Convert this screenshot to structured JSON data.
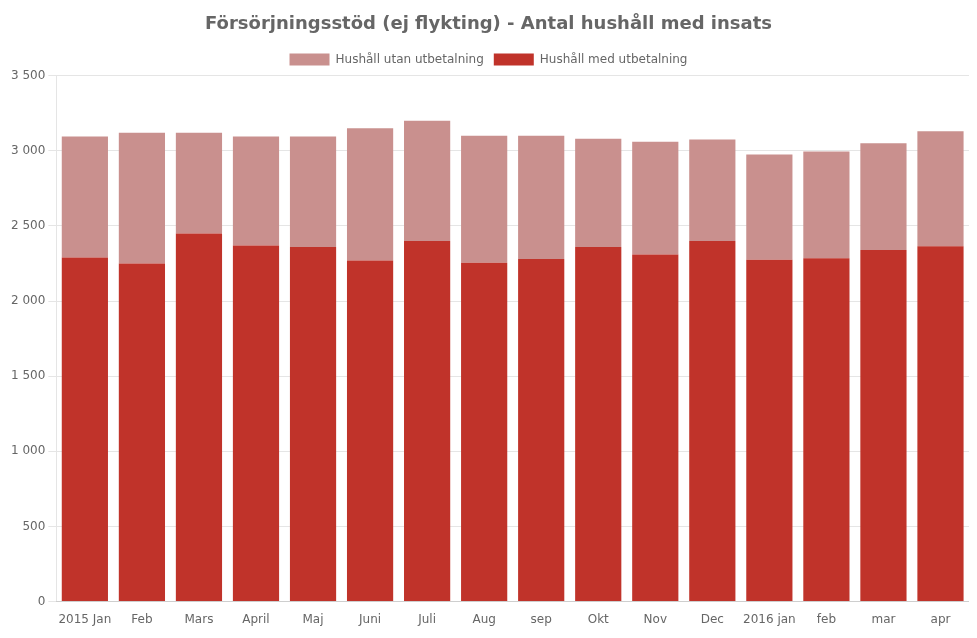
{
  "chart_data": {
    "type": "bar",
    "title": "Försörjningsstöd (ej flykting) - Antal hushåll med insats",
    "categories": [
      "2015 Jan",
      "Feb",
      "Mars",
      "April",
      "Maj",
      "Juni",
      "Juli",
      "Aug",
      "sep",
      "Okt",
      "Nov",
      "Dec",
      "2016 jan",
      "feb",
      "mar",
      "apr"
    ],
    "series": [
      {
        "name": "Hushåll med utbetalning",
        "color": "#C0332A",
        "values": [
          2290,
          2250,
          2450,
          2370,
          2360,
          2270,
          2400,
          2255,
          2280,
          2360,
          2310,
          2400,
          2275,
          2285,
          2340,
          2365
        ]
      },
      {
        "name": "Hushåll utan utbetalning",
        "color": "#C9908E",
        "values": [
          805,
          870,
          670,
          725,
          735,
          880,
          800,
          845,
          820,
          720,
          750,
          675,
          700,
          710,
          710,
          765
        ]
      }
    ],
    "stacked": true,
    "ylim": [
      0,
      3500
    ],
    "yticks": [
      0,
      500,
      {
        "value": 1000,
        "label": "1 000"
      },
      {
        "value": 1500,
        "label": "1 500"
      },
      {
        "value": 2000,
        "label": "2 000"
      },
      {
        "value": 2500,
        "label": "2 500"
      },
      {
        "value": 3000,
        "label": "3 000"
      },
      {
        "value": 3500,
        "label": "3 500"
      }
    ],
    "grid": true,
    "legend": "top"
  }
}
